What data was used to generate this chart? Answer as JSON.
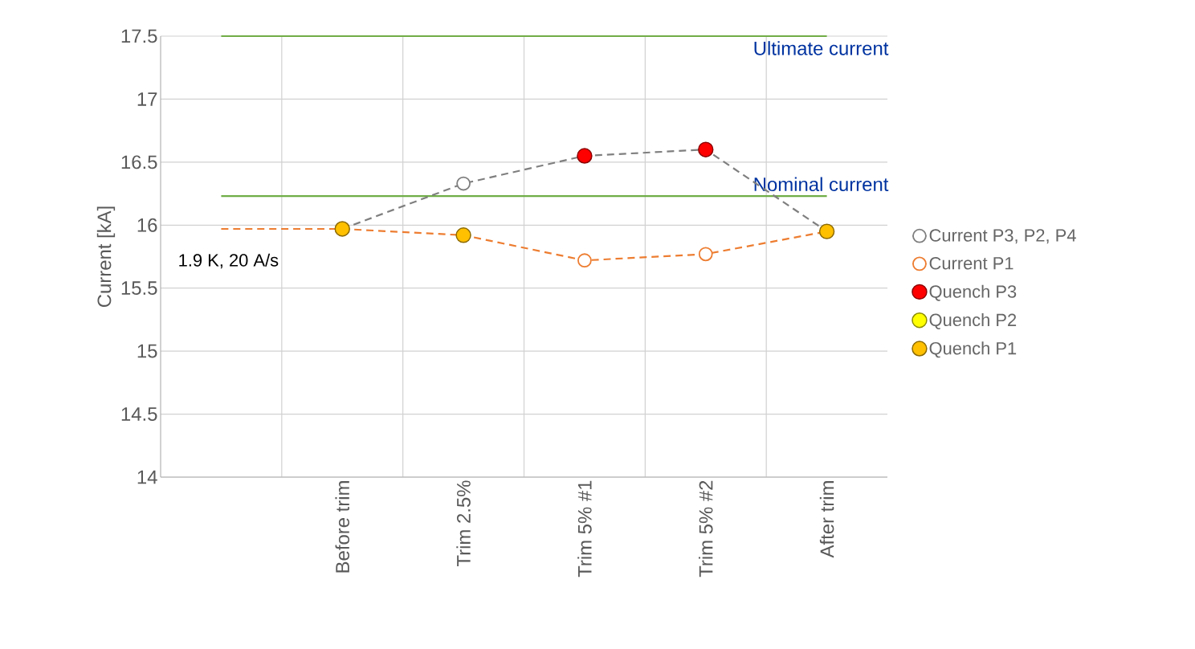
{
  "chart_data": {
    "type": "line",
    "ylabel": "Current [kA]",
    "categories": [
      null,
      "Before trim",
      "Trim 2.5%",
      "Trim 5% #1",
      "Trim 5% #2",
      "After trim"
    ],
    "series": [
      {
        "name": "Current P3, P2, P4",
        "color": "#7f7f7f",
        "marker": "circle",
        "line_style": "dashed",
        "values": [
          null,
          15.97,
          16.33,
          16.55,
          16.6,
          15.95
        ]
      },
      {
        "name": "Current P1",
        "color": "#ed7d31",
        "marker": "circle",
        "line_style": "dashed",
        "values": [
          null,
          15.97,
          15.92,
          15.72,
          15.77,
          15.95
        ]
      },
      {
        "color": "#ed7d31",
        "marker": "none",
        "line_style": "dashed",
        "values": [
          15.97,
          15.97,
          null,
          null,
          null,
          null
        ]
      },
      {
        "name": "Quench P3",
        "type": "scatter",
        "color": "#ff0000",
        "marker": "circle",
        "values": [
          null,
          null,
          null,
          16.55,
          16.6,
          null
        ]
      },
      {
        "name": "Quench P2",
        "type": "scatter",
        "color": "#ffff00",
        "marker": "circle",
        "values": [
          null,
          null,
          null,
          null,
          null,
          null
        ]
      },
      {
        "name": "Quench P1",
        "type": "scatter",
        "color": "#ffc000",
        "marker": "circle",
        "values": [
          null,
          15.97,
          15.92,
          null,
          null,
          15.95
        ]
      }
    ],
    "ylim": [
      14,
      17.5
    ],
    "yticks": [
      14,
      14.5,
      15,
      15.5,
      16,
      16.5,
      17,
      17.5
    ],
    "grid": true,
    "legend": "right",
    "ref_lines": [
      {
        "axis": "y",
        "value": 17.5,
        "label": "Ultimate current",
        "color": "#70ad47"
      },
      {
        "axis": "y",
        "value": 16.23,
        "label": "Nominal current",
        "color": "#70ad47"
      }
    ],
    "annotations": [
      "1.9 K, 20 A/s"
    ]
  }
}
